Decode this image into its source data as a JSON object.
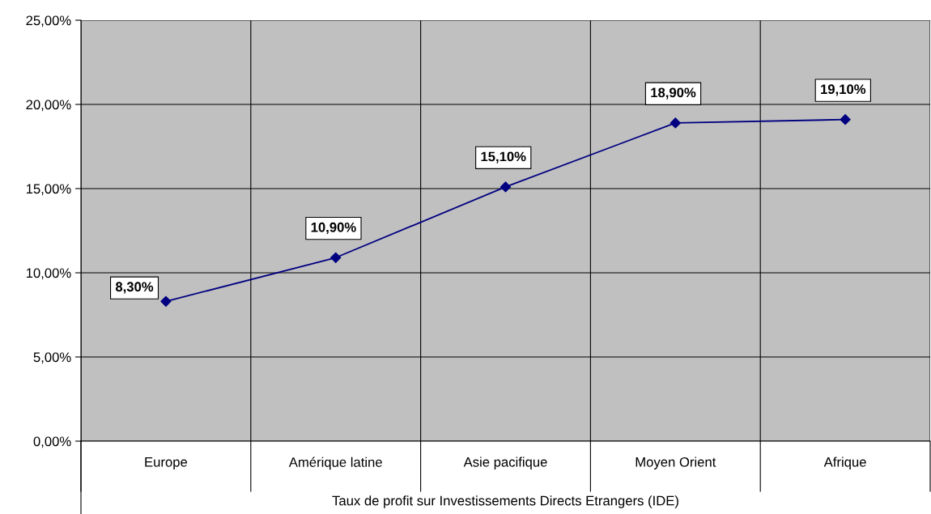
{
  "chart_data": {
    "type": "line",
    "categories": [
      "Europe",
      "Amérique latine",
      "Asie pacifique",
      "Moyen Orient",
      "Afrique"
    ],
    "series": [
      {
        "color": "#000080",
        "values": [
          8.3,
          10.9,
          15.1,
          18.9,
          19.1
        ],
        "value_labels": [
          "8,30%",
          "10,90%",
          "15,10%",
          "18,90%",
          "19,10%"
        ]
      }
    ],
    "xlabel": "Taux de profit sur Investissements Directs Etrangers (IDE)",
    "ylim": [
      0,
      25
    ],
    "yticks": [
      {
        "value": 0,
        "label": "0,00%"
      },
      {
        "value": 5,
        "label": "5,00%"
      },
      {
        "value": 10,
        "label": "10,00%"
      },
      {
        "value": 15,
        "label": "15,00%"
      },
      {
        "value": 20,
        "label": "20,00%"
      },
      {
        "value": 25,
        "label": "25,00%"
      }
    ],
    "grid": true,
    "marker": "diamond",
    "line_style": "solid"
  }
}
